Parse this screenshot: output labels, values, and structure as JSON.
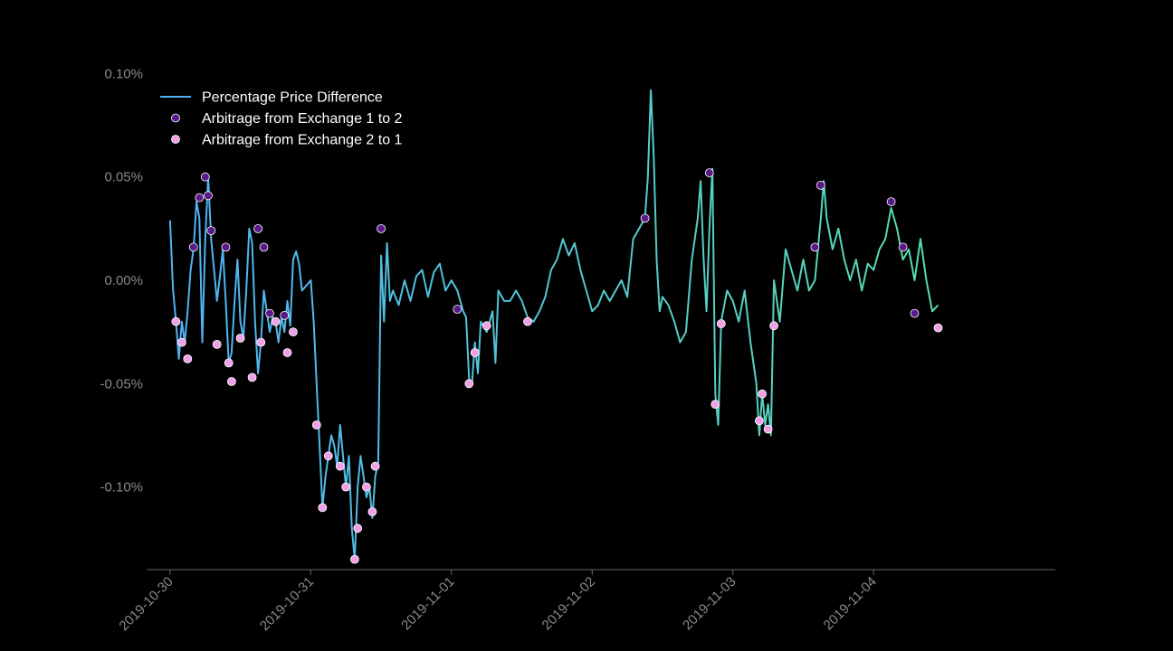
{
  "chart_data": {
    "type": "scatter",
    "title": "",
    "xlabel": "",
    "ylabel": "",
    "background": "#000000",
    "line_gradient": [
      "#4fb3f5",
      "#58e0a8"
    ],
    "x_range": [
      "2019-10-29T20:00",
      "2019-11-05T07:00"
    ],
    "ylim": [
      -0.14,
      0.105
    ],
    "y_unit": "%",
    "x_ticks": [
      "2019-10-30",
      "2019-10-31",
      "2019-11-01",
      "2019-11-02",
      "2019-11-03",
      "2019-11-04"
    ],
    "y_ticks": [
      {
        "value": 0.1,
        "label": "0.10%"
      },
      {
        "value": 0.05,
        "label": "0.05%"
      },
      {
        "value": 0.0,
        "label": "0.00%"
      },
      {
        "value": -0.05,
        "label": "-0.05%"
      },
      {
        "value": -0.1,
        "label": "-0.10%"
      }
    ],
    "legend_position": "top-left",
    "legend": [
      {
        "label": "Percentage Price Difference",
        "kind": "line"
      },
      {
        "label": "Arbitrage from Exchange 1 to 2",
        "kind": "marker",
        "color": "#5a1a8c"
      },
      {
        "label": "Arbitrage from Exchange 2 to 1",
        "kind": "marker",
        "color": "#f0a0e6"
      }
    ],
    "series": [
      {
        "name": "Percentage Price Difference",
        "points": [
          [
            "2019-10-30T00:00",
            0.029
          ],
          [
            "2019-10-30T00:30",
            -0.004
          ],
          [
            "2019-10-30T01:00",
            -0.02
          ],
          [
            "2019-10-30T01:30",
            -0.038
          ],
          [
            "2019-10-30T02:00",
            -0.02
          ],
          [
            "2019-10-30T02:30",
            -0.03
          ],
          [
            "2019-10-30T03:00",
            -0.015
          ],
          [
            "2019-10-30T03:30",
            0.005
          ],
          [
            "2019-10-30T04:00",
            0.015
          ],
          [
            "2019-10-30T04:30",
            0.038
          ],
          [
            "2019-10-30T05:00",
            0.03
          ],
          [
            "2019-10-30T05:30",
            -0.03
          ],
          [
            "2019-10-30T06:00",
            0.02
          ],
          [
            "2019-10-30T06:30",
            0.05
          ],
          [
            "2019-10-30T07:00",
            0.02
          ],
          [
            "2019-10-30T07:30",
            0.005
          ],
          [
            "2019-10-30T08:00",
            -0.01
          ],
          [
            "2019-10-30T08:30",
            0.002
          ],
          [
            "2019-10-30T09:00",
            0.015
          ],
          [
            "2019-10-30T09:30",
            -0.01
          ],
          [
            "2019-10-30T10:00",
            -0.04
          ],
          [
            "2019-10-30T10:30",
            -0.035
          ],
          [
            "2019-10-30T11:00",
            -0.01
          ],
          [
            "2019-10-30T11:30",
            0.01
          ],
          [
            "2019-10-30T12:00",
            -0.02
          ],
          [
            "2019-10-30T12:30",
            -0.028
          ],
          [
            "2019-10-30T13:00",
            -0.005
          ],
          [
            "2019-10-30T13:30",
            0.025
          ],
          [
            "2019-10-30T14:00",
            0.018
          ],
          [
            "2019-10-30T14:30",
            -0.02
          ],
          [
            "2019-10-30T15:00",
            -0.045
          ],
          [
            "2019-10-30T15:30",
            -0.03
          ],
          [
            "2019-10-30T16:00",
            -0.005
          ],
          [
            "2019-10-30T16:30",
            -0.015
          ],
          [
            "2019-10-30T17:00",
            -0.025
          ],
          [
            "2019-10-30T17:30",
            -0.018
          ],
          [
            "2019-10-30T18:00",
            -0.02
          ],
          [
            "2019-10-30T18:30",
            -0.03
          ],
          [
            "2019-10-30T19:00",
            -0.018
          ],
          [
            "2019-10-30T19:30",
            -0.025
          ],
          [
            "2019-10-30T20:00",
            -0.01
          ],
          [
            "2019-10-30T20:30",
            -0.022
          ],
          [
            "2019-10-30T21:00",
            0.01
          ],
          [
            "2019-10-30T21:30",
            0.014
          ],
          [
            "2019-10-30T22:00",
            0.008
          ],
          [
            "2019-10-30T22:30",
            -0.005
          ],
          [
            "2019-10-31T00:00",
            0.0
          ],
          [
            "2019-10-31T00:30",
            -0.02
          ],
          [
            "2019-10-31T01:00",
            -0.05
          ],
          [
            "2019-10-31T01:30",
            -0.08
          ],
          [
            "2019-10-31T02:00",
            -0.11
          ],
          [
            "2019-10-31T02:30",
            -0.095
          ],
          [
            "2019-10-31T03:00",
            -0.085
          ],
          [
            "2019-10-31T03:30",
            -0.075
          ],
          [
            "2019-10-31T04:00",
            -0.08
          ],
          [
            "2019-10-31T04:30",
            -0.09
          ],
          [
            "2019-10-31T05:00",
            -0.07
          ],
          [
            "2019-10-31T05:30",
            -0.085
          ],
          [
            "2019-10-31T06:00",
            -0.1
          ],
          [
            "2019-10-31T06:30",
            -0.085
          ],
          [
            "2019-10-31T07:00",
            -0.12
          ],
          [
            "2019-10-31T07:30",
            -0.135
          ],
          [
            "2019-10-31T08:00",
            -0.1
          ],
          [
            "2019-10-31T08:30",
            -0.085
          ],
          [
            "2019-10-31T09:00",
            -0.095
          ],
          [
            "2019-10-31T09:30",
            -0.105
          ],
          [
            "2019-10-31T10:00",
            -0.1
          ],
          [
            "2019-10-31T10:30",
            -0.115
          ],
          [
            "2019-10-31T11:00",
            -0.095
          ],
          [
            "2019-10-31T11:30",
            -0.088
          ],
          [
            "2019-10-31T12:00",
            0.012
          ],
          [
            "2019-10-31T12:30",
            -0.02
          ],
          [
            "2019-10-31T13:00",
            0.018
          ],
          [
            "2019-10-31T13:30",
            -0.01
          ],
          [
            "2019-10-31T14:00",
            -0.005
          ],
          [
            "2019-10-31T15:00",
            -0.012
          ],
          [
            "2019-10-31T16:00",
            0.0
          ],
          [
            "2019-10-31T17:00",
            -0.01
          ],
          [
            "2019-10-31T18:00",
            0.002
          ],
          [
            "2019-10-31T19:00",
            0.005
          ],
          [
            "2019-10-31T20:00",
            -0.008
          ],
          [
            "2019-10-31T21:00",
            0.004
          ],
          [
            "2019-10-31T22:00",
            0.008
          ],
          [
            "2019-10-31T23:00",
            -0.005
          ],
          [
            "2019-11-01T00:00",
            0.0
          ],
          [
            "2019-11-01T01:00",
            -0.005
          ],
          [
            "2019-11-01T02:00",
            -0.015
          ],
          [
            "2019-11-01T02:30",
            -0.018
          ],
          [
            "2019-11-01T03:00",
            -0.048
          ],
          [
            "2019-11-01T03:30",
            -0.05
          ],
          [
            "2019-11-01T04:00",
            -0.03
          ],
          [
            "2019-11-01T04:30",
            -0.045
          ],
          [
            "2019-11-01T05:00",
            -0.02
          ],
          [
            "2019-11-01T06:00",
            -0.025
          ],
          [
            "2019-11-01T07:00",
            -0.015
          ],
          [
            "2019-11-01T07:30",
            -0.04
          ],
          [
            "2019-11-01T08:00",
            -0.005
          ],
          [
            "2019-11-01T09:00",
            -0.01
          ],
          [
            "2019-11-01T10:00",
            -0.01
          ],
          [
            "2019-11-01T11:00",
            -0.005
          ],
          [
            "2019-11-01T12:00",
            -0.01
          ],
          [
            "2019-11-01T13:00",
            -0.018
          ],
          [
            "2019-11-01T14:00",
            -0.02
          ],
          [
            "2019-11-01T15:00",
            -0.015
          ],
          [
            "2019-11-01T16:00",
            -0.008
          ],
          [
            "2019-11-01T17:00",
            0.005
          ],
          [
            "2019-11-01T18:00",
            0.01
          ],
          [
            "2019-11-01T19:00",
            0.02
          ],
          [
            "2019-11-01T20:00",
            0.012
          ],
          [
            "2019-11-01T21:00",
            0.018
          ],
          [
            "2019-11-01T22:00",
            0.005
          ],
          [
            "2019-11-01T23:00",
            -0.005
          ],
          [
            "2019-11-02T00:00",
            -0.015
          ],
          [
            "2019-11-02T01:00",
            -0.012
          ],
          [
            "2019-11-02T02:00",
            -0.005
          ],
          [
            "2019-11-02T03:00",
            -0.01
          ],
          [
            "2019-11-02T04:00",
            -0.005
          ],
          [
            "2019-11-02T05:00",
            0.0
          ],
          [
            "2019-11-02T06:00",
            -0.008
          ],
          [
            "2019-11-02T07:00",
            0.02
          ],
          [
            "2019-11-02T08:00",
            0.025
          ],
          [
            "2019-11-02T09:00",
            0.03
          ],
          [
            "2019-11-02T09:30",
            0.05
          ],
          [
            "2019-11-02T10:00",
            0.092
          ],
          [
            "2019-11-02T10:30",
            0.06
          ],
          [
            "2019-11-02T11:00",
            0.01
          ],
          [
            "2019-11-02T11:30",
            -0.015
          ],
          [
            "2019-11-02T12:00",
            -0.008
          ],
          [
            "2019-11-02T13:00",
            -0.012
          ],
          [
            "2019-11-02T14:00",
            -0.02
          ],
          [
            "2019-11-02T15:00",
            -0.03
          ],
          [
            "2019-11-02T16:00",
            -0.025
          ],
          [
            "2019-11-02T17:00",
            0.01
          ],
          [
            "2019-11-02T18:00",
            0.03
          ],
          [
            "2019-11-02T18:30",
            0.048
          ],
          [
            "2019-11-02T19:00",
            0.01
          ],
          [
            "2019-11-02T19:30",
            -0.015
          ],
          [
            "2019-11-02T20:00",
            0.025
          ],
          [
            "2019-11-02T20:30",
            0.054
          ],
          [
            "2019-11-02T21:00",
            -0.055
          ],
          [
            "2019-11-02T21:30",
            -0.07
          ],
          [
            "2019-11-02T22:00",
            -0.02
          ],
          [
            "2019-11-02T23:00",
            -0.005
          ],
          [
            "2019-11-03T00:00",
            -0.01
          ],
          [
            "2019-11-03T01:00",
            -0.02
          ],
          [
            "2019-11-03T02:00",
            -0.005
          ],
          [
            "2019-11-03T03:00",
            -0.03
          ],
          [
            "2019-11-03T04:00",
            -0.05
          ],
          [
            "2019-11-03T04:30",
            -0.075
          ],
          [
            "2019-11-03T05:00",
            -0.055
          ],
          [
            "2019-11-03T05:30",
            -0.07
          ],
          [
            "2019-11-03T06:00",
            -0.06
          ],
          [
            "2019-11-03T06:30",
            -0.075
          ],
          [
            "2019-11-03T07:00",
            0.0
          ],
          [
            "2019-11-03T08:00",
            -0.02
          ],
          [
            "2019-11-03T09:00",
            0.015
          ],
          [
            "2019-11-03T10:00",
            0.005
          ],
          [
            "2019-11-03T11:00",
            -0.005
          ],
          [
            "2019-11-03T12:00",
            0.01
          ],
          [
            "2019-11-03T13:00",
            -0.005
          ],
          [
            "2019-11-03T14:00",
            0.0
          ],
          [
            "2019-11-03T15:00",
            0.03
          ],
          [
            "2019-11-03T15:30",
            0.048
          ],
          [
            "2019-11-03T16:00",
            0.03
          ],
          [
            "2019-11-03T17:00",
            0.015
          ],
          [
            "2019-11-03T18:00",
            0.025
          ],
          [
            "2019-11-03T19:00",
            0.01
          ],
          [
            "2019-11-03T20:00",
            0.0
          ],
          [
            "2019-11-03T21:00",
            0.01
          ],
          [
            "2019-11-03T22:00",
            -0.005
          ],
          [
            "2019-11-03T23:00",
            0.008
          ],
          [
            "2019-11-04T00:00",
            0.005
          ],
          [
            "2019-11-04T01:00",
            0.015
          ],
          [
            "2019-11-04T02:00",
            0.02
          ],
          [
            "2019-11-04T03:00",
            0.035
          ],
          [
            "2019-11-04T04:00",
            0.025
          ],
          [
            "2019-11-04T05:00",
            0.01
          ],
          [
            "2019-11-04T06:00",
            0.015
          ],
          [
            "2019-11-04T07:00",
            0.0
          ],
          [
            "2019-11-04T08:00",
            0.02
          ],
          [
            "2019-11-04T09:00",
            0.0
          ],
          [
            "2019-11-04T10:00",
            -0.015
          ],
          [
            "2019-11-04T11:00",
            -0.012
          ]
        ]
      },
      {
        "name": "Arbitrage from Exchange 1 to 2",
        "color": "#5a1a8c",
        "points": [
          [
            "2019-10-30T04:00",
            0.016
          ],
          [
            "2019-10-30T05:00",
            0.04
          ],
          [
            "2019-10-30T06:00",
            0.05
          ],
          [
            "2019-10-30T06:30",
            0.041
          ],
          [
            "2019-10-30T07:00",
            0.024
          ],
          [
            "2019-10-30T09:30",
            0.016
          ],
          [
            "2019-10-30T15:00",
            0.025
          ],
          [
            "2019-10-30T16:00",
            0.016
          ],
          [
            "2019-10-30T17:00",
            -0.016
          ],
          [
            "2019-10-30T19:30",
            -0.017
          ],
          [
            "2019-10-31T12:00",
            0.025
          ],
          [
            "2019-11-01T01:00",
            -0.014
          ],
          [
            "2019-11-02T09:00",
            0.03
          ],
          [
            "2019-11-02T20:00",
            0.052
          ],
          [
            "2019-11-03T14:00",
            0.016
          ],
          [
            "2019-11-03T15:00",
            0.046
          ],
          [
            "2019-11-04T03:00",
            0.038
          ],
          [
            "2019-11-04T05:00",
            0.016
          ],
          [
            "2019-11-04T07:00",
            -0.016
          ]
        ]
      },
      {
        "name": "Arbitrage from Exchange 2 to 1",
        "color": "#f0a0e6",
        "points": [
          [
            "2019-10-30T01:00",
            -0.02
          ],
          [
            "2019-10-30T02:00",
            -0.03
          ],
          [
            "2019-10-30T03:00",
            -0.038
          ],
          [
            "2019-10-30T08:00",
            -0.031
          ],
          [
            "2019-10-30T10:00",
            -0.04
          ],
          [
            "2019-10-30T10:30",
            -0.049
          ],
          [
            "2019-10-30T12:00",
            -0.028
          ],
          [
            "2019-10-30T14:00",
            -0.047
          ],
          [
            "2019-10-30T15:30",
            -0.03
          ],
          [
            "2019-10-30T18:00",
            -0.02
          ],
          [
            "2019-10-30T20:00",
            -0.035
          ],
          [
            "2019-10-30T21:00",
            -0.025
          ],
          [
            "2019-10-31T01:00",
            -0.07
          ],
          [
            "2019-10-31T02:00",
            -0.11
          ],
          [
            "2019-10-31T03:00",
            -0.085
          ],
          [
            "2019-10-31T05:00",
            -0.09
          ],
          [
            "2019-10-31T06:00",
            -0.1
          ],
          [
            "2019-10-31T07:30",
            -0.135
          ],
          [
            "2019-10-31T08:00",
            -0.12
          ],
          [
            "2019-10-31T09:30",
            -0.1
          ],
          [
            "2019-10-31T10:30",
            -0.112
          ],
          [
            "2019-10-31T11:00",
            -0.09
          ],
          [
            "2019-11-01T03:00",
            -0.05
          ],
          [
            "2019-11-01T04:00",
            -0.035
          ],
          [
            "2019-11-01T06:00",
            -0.022
          ],
          [
            "2019-11-01T13:00",
            -0.02
          ],
          [
            "2019-11-02T21:00",
            -0.06
          ],
          [
            "2019-11-02T22:00",
            -0.021
          ],
          [
            "2019-11-03T04:30",
            -0.068
          ],
          [
            "2019-11-03T05:00",
            -0.055
          ],
          [
            "2019-11-03T06:00",
            -0.072
          ],
          [
            "2019-11-03T07:00",
            -0.022
          ],
          [
            "2019-11-04T11:00",
            -0.023
          ]
        ]
      }
    ]
  }
}
